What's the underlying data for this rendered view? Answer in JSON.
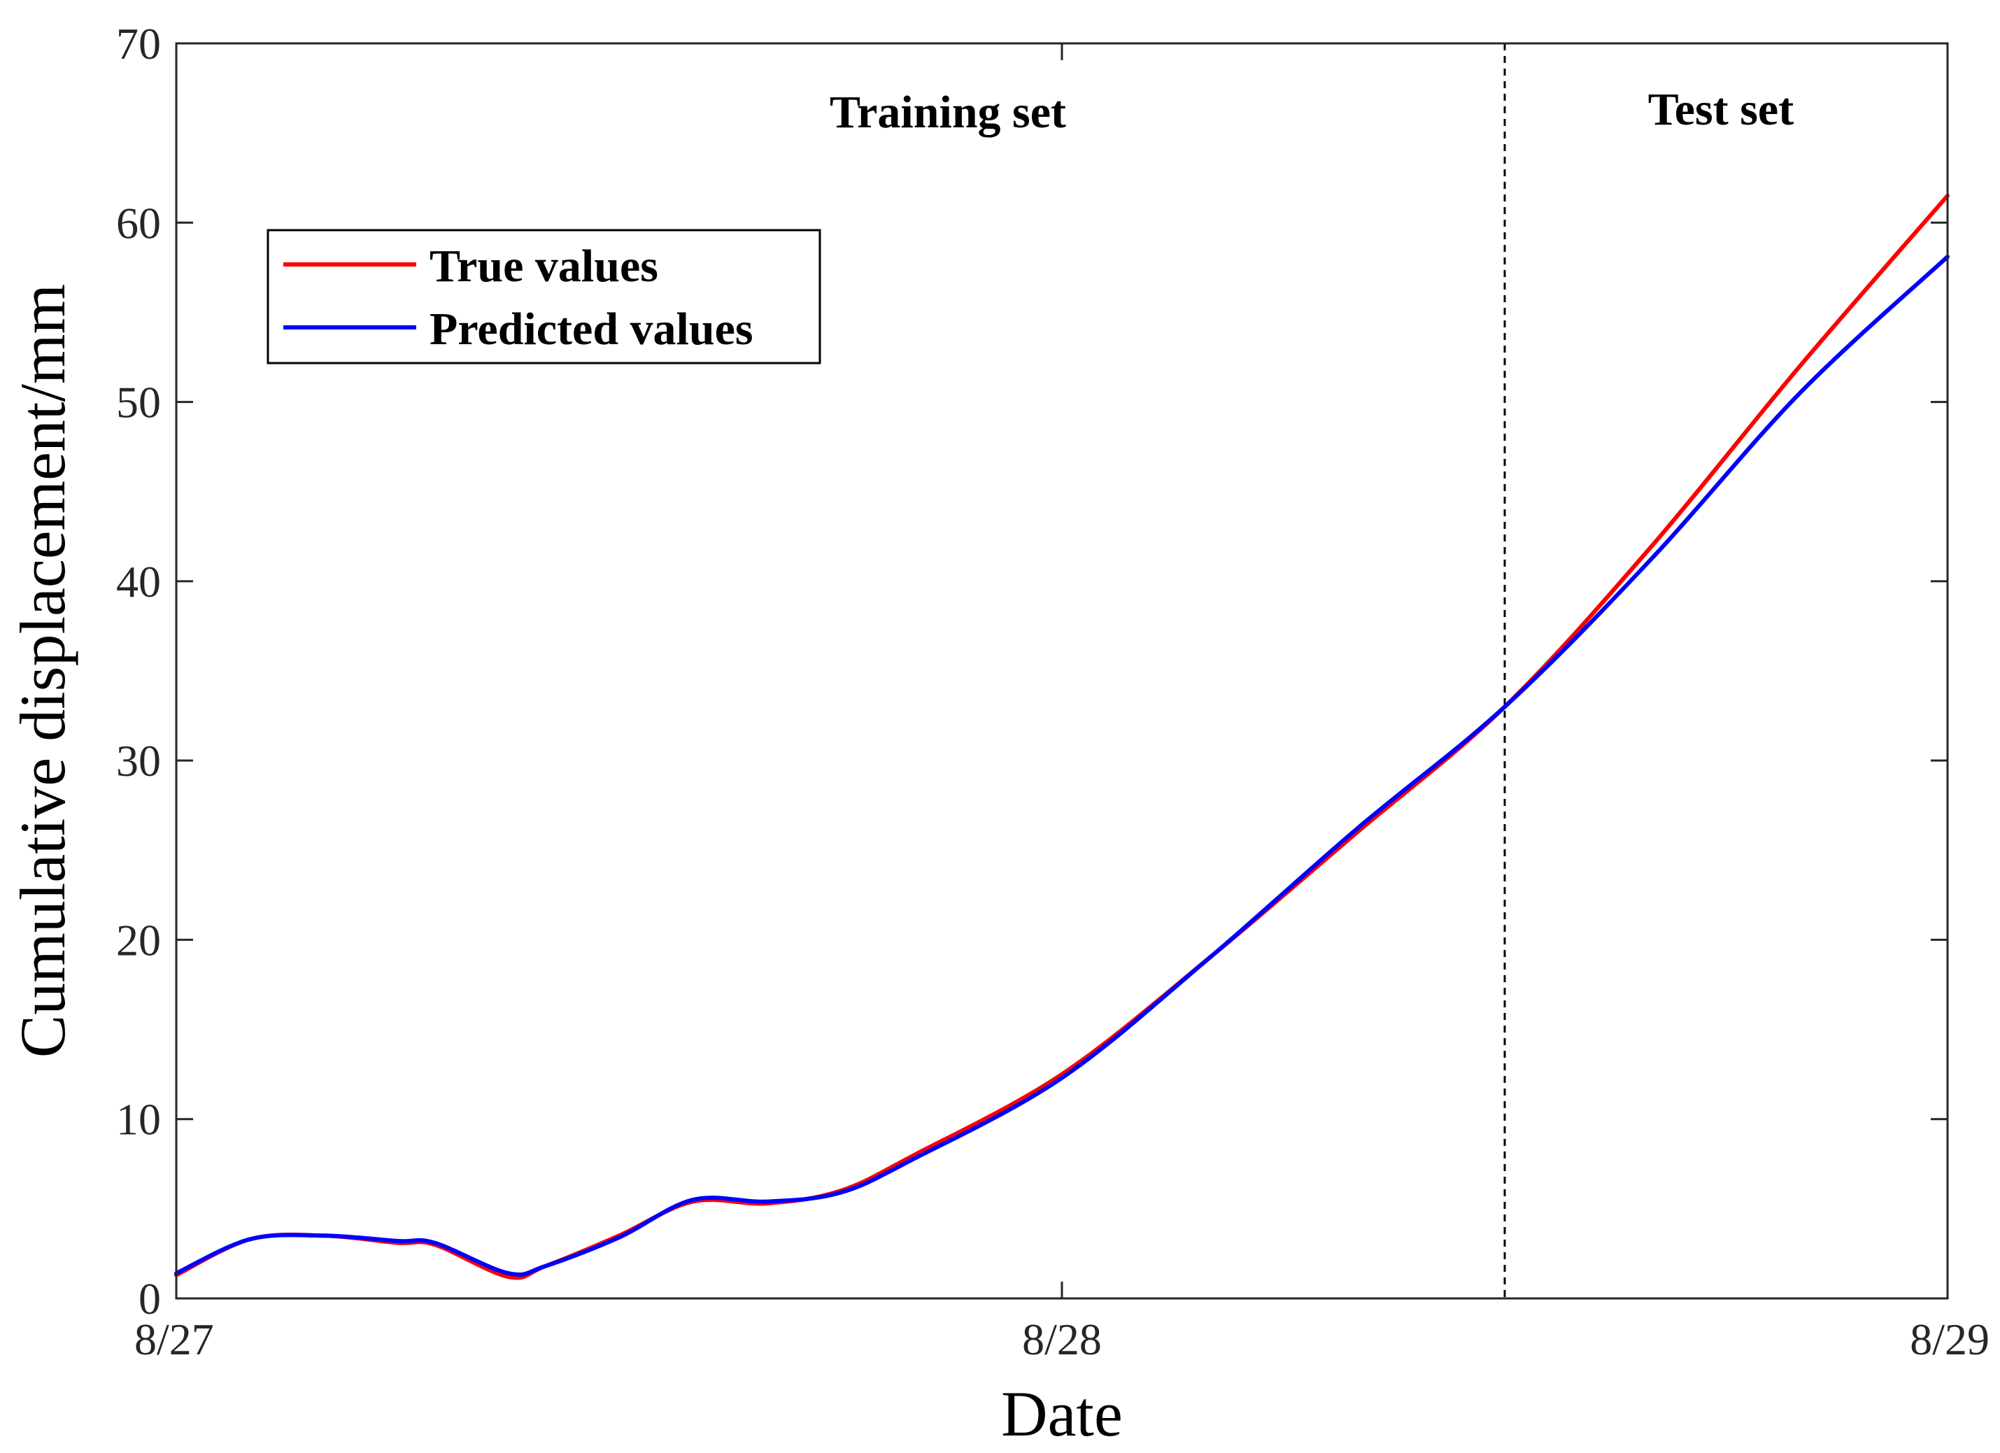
{
  "chart_data": {
    "type": "line",
    "xlabel": "Date",
    "ylabel": "Cumulative displacement/mm",
    "x_ticks": [
      "8/27",
      "8/28",
      "8/29"
    ],
    "y_ticks": [
      0,
      10,
      20,
      30,
      40,
      50,
      60,
      70
    ],
    "xlim": [
      "8/27",
      "8/29"
    ],
    "ylim": [
      0,
      70
    ],
    "grid": false,
    "legend_position": "upper-left",
    "split_date": "8/28 12:00",
    "annotations": [
      "Training set",
      "Test set"
    ],
    "series": [
      {
        "name": "True values",
        "color": "#ff0000",
        "x": [
          "8/27 00:00",
          "8/27 02:00",
          "8/27 04:00",
          "8/27 06:00",
          "8/27 07:00",
          "8/27 09:00",
          "8/27 10:00",
          "8/27 12:00",
          "8/27 14:00",
          "8/27 16:00",
          "8/27 18:00",
          "8/27 20:00",
          "8/28 00:00",
          "8/28 04:00",
          "8/28 08:00",
          "8/28 12:00",
          "8/28 16:00",
          "8/28 20:00",
          "8/29 00:00"
        ],
        "y": [
          1.3,
          3.3,
          3.5,
          3.1,
          3.0,
          1.2,
          1.8,
          3.5,
          5.4,
          5.3,
          6.0,
          8.0,
          12.5,
          19.0,
          26.0,
          33.0,
          42.0,
          52.0,
          61.5
        ]
      },
      {
        "name": "Predicted values",
        "color": "#0000ff",
        "x": [
          "8/27 00:00",
          "8/27 02:00",
          "8/27 04:00",
          "8/27 06:00",
          "8/27 07:00",
          "8/27 09:00",
          "8/27 10:00",
          "8/27 12:00",
          "8/27 14:00",
          "8/27 16:00",
          "8/27 18:00",
          "8/27 20:00",
          "8/28 00:00",
          "8/28 04:00",
          "8/28 08:00",
          "8/28 12:00",
          "8/28 16:00",
          "8/28 20:00",
          "8/29 00:00"
        ],
        "y": [
          1.4,
          3.3,
          3.5,
          3.2,
          3.1,
          1.4,
          1.8,
          3.4,
          5.5,
          5.4,
          5.9,
          7.8,
          12.3,
          19.0,
          26.2,
          33.0,
          41.3,
          50.5,
          58.1
        ]
      }
    ]
  }
}
